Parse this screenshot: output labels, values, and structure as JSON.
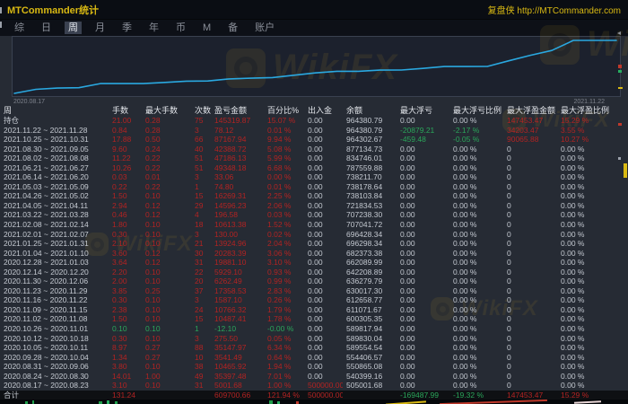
{
  "palette": {
    "red": "#b32322",
    "green": "#2aa65a",
    "neutral": "#c3c8d0",
    "yellow": "#d9b913",
    "chart_line": "#2aa8e0",
    "chart_bg": "#1c212d",
    "table_bg": "#262b34",
    "titlebar_bg": "#0a0d13"
  },
  "titlebar": {
    "title": "MTCommander统计",
    "link": "复盘侠 http://MTCommander.com"
  },
  "tabs": {
    "items": [
      "综",
      "日",
      "周",
      "月",
      "季",
      "年",
      "币",
      "M",
      "备",
      "账户"
    ],
    "active_index": 2
  },
  "watermark": {
    "text": "WikiFX"
  },
  "chart_data": {
    "type": "line",
    "title": "",
    "x_start_label": "2020.08.17",
    "x_end_label": "2021.11.22",
    "series": [
      {
        "name": "余额",
        "values": [
          505001.68,
          540399.16,
          550865.08,
          554406.57,
          589554.54,
          589830.04,
          589817.94,
          600305.35,
          611071.67,
          612658.77,
          630017.3,
          636279.79,
          642208.89,
          662089.99,
          682373.38,
          696298.34,
          696428.34,
          707041.72,
          707238.3,
          721834.53,
          738103.84,
          738178.64,
          738211.7,
          787559.88,
          834746.01,
          877134.73,
          964302.67,
          964380.79,
          964380.79
        ]
      }
    ],
    "ylim": [
      505001.68,
      964380.79
    ],
    "grid": false,
    "legend": false
  },
  "table": {
    "headers": [
      "周",
      "手数",
      "最大手数",
      "次数",
      "盈亏金额",
      "百分比%",
      "出入金",
      "余额",
      "最大浮亏",
      "最大浮亏比例",
      "最大浮盈金额",
      "最大浮盈比例"
    ],
    "rows": [
      {
        "period": "持仓",
        "cells": [
          "21.00",
          "0.28",
          "75",
          "145319.87",
          "15.07 %",
          "0.00",
          "964380.79",
          "0.00",
          "0.00 %",
          "147453.47",
          "15.29 %"
        ],
        "colors": "rrrrrwwwwrr"
      },
      {
        "period": "2021.11.22 ~ 2021.11.28",
        "cells": [
          "0.84",
          "0.28",
          "3",
          "78.12",
          "0.01 %",
          "0.00",
          "964380.79",
          "-20879.21",
          "-2.17 %",
          "34203.47",
          "3.55 %"
        ],
        "colors": "rrrrrwwggrr"
      },
      {
        "period": "2021.10.25 ~ 2021.10.31",
        "cells": [
          "17.88",
          "0.50",
          "66",
          "87167.94",
          "9.94 %",
          "0.00",
          "964302.67",
          "-459.48",
          "-0.05 %",
          "90065.88",
          "10.27 %"
        ],
        "colors": "rrrrrwwggrr"
      },
      {
        "period": "2021.08.30 ~ 2021.09.05",
        "cells": [
          "9.60",
          "0.24",
          "40",
          "42388.72",
          "5.08 %",
          "0.00",
          "877134.73",
          "0.00",
          "0.00 %",
          "0",
          "0.00 %"
        ],
        "colors": "rrrrrwwwwww"
      },
      {
        "period": "2021.08.02 ~ 2021.08.08",
        "cells": [
          "11.22",
          "0.22",
          "51",
          "47186.13",
          "5.99 %",
          "0.00",
          "834746.01",
          "0.00",
          "0.00 %",
          "0",
          "0.00 %"
        ],
        "colors": "rrrrrwwwwww"
      },
      {
        "period": "2021.06.21 ~ 2021.06.27",
        "cells": [
          "10.26",
          "0.22",
          "51",
          "49348.18",
          "6.68 %",
          "0.00",
          "787559.88",
          "0.00",
          "0.00 %",
          "0",
          "0.00 %"
        ],
        "colors": "rrrrrwwwwww"
      },
      {
        "period": "2021.06.14 ~ 2021.06.20",
        "cells": [
          "0.03",
          "0.01",
          "3",
          "33.06",
          "0.00 %",
          "0.00",
          "738211.70",
          "0.00",
          "0.00 %",
          "0",
          "0.00 %"
        ],
        "colors": "rrrrrwwwwww"
      },
      {
        "period": "2021.05.03 ~ 2021.05.09",
        "cells": [
          "0.22",
          "0.22",
          "1",
          "74.80",
          "0.01 %",
          "0.00",
          "738178.64",
          "0.00",
          "0.00 %",
          "0",
          "0.00 %"
        ],
        "colors": "rrrrrwwwwww"
      },
      {
        "period": "2021.04.26 ~ 2021.05.02",
        "cells": [
          "1.50",
          "0.10",
          "15",
          "16269.31",
          "2.25 %",
          "0.00",
          "738103.84",
          "0.00",
          "0.00 %",
          "0",
          "0.00 %"
        ],
        "colors": "rrrrrwwwwww"
      },
      {
        "period": "2021.04.05 ~ 2021.04.11",
        "cells": [
          "2.94",
          "0.12",
          "29",
          "14596.23",
          "2.06 %",
          "0.00",
          "721834.53",
          "0.00",
          "0.00 %",
          "0",
          "0.00 %"
        ],
        "colors": "rrrrrwwwwww"
      },
      {
        "period": "2021.03.22 ~ 2021.03.28",
        "cells": [
          "0.46",
          "0.12",
          "4",
          "196.58",
          "0.03 %",
          "0.00",
          "707238.30",
          "0.00",
          "0.00 %",
          "0",
          "0.00 %"
        ],
        "colors": "rrrrrwwwwww"
      },
      {
        "period": "2021.02.08 ~ 2021.02.14",
        "cells": [
          "1.80",
          "0.10",
          "18",
          "10613.38",
          "1.52 %",
          "0.00",
          "707041.72",
          "0.00",
          "0.00 %",
          "0",
          "0.00 %"
        ],
        "colors": "rrrrrwwwwww"
      },
      {
        "period": "2021.02.01 ~ 2021.02.07",
        "cells": [
          "0.30",
          "0.10",
          "3",
          "130.00",
          "0.02 %",
          "0.00",
          "696428.34",
          "0.00",
          "0.00 %",
          "0",
          "0.00 %"
        ],
        "colors": "rrrrrwwwwww"
      },
      {
        "period": "2021.01.25 ~ 2021.01.31",
        "cells": [
          "2.10",
          "0.10",
          "21",
          "13924.96",
          "2.04 %",
          "0.00",
          "696298.34",
          "0.00",
          "0.00 %",
          "0",
          "0.00 %"
        ],
        "colors": "rrrrrwwwwww"
      },
      {
        "period": "2021.01.04 ~ 2021.01.10",
        "cells": [
          "3.60",
          "0.12",
          "30",
          "20283.39",
          "3.06 %",
          "0.00",
          "682373.38",
          "0.00",
          "0.00 %",
          "0",
          "0.00 %"
        ],
        "colors": "rrrrrwwwwww"
      },
      {
        "period": "2020.12.28 ~ 2021.01.03",
        "cells": [
          "3.64",
          "0.12",
          "31",
          "19881.10",
          "3.10 %",
          "0.00",
          "662089.99",
          "0.00",
          "0.00 %",
          "0",
          "0.00 %"
        ],
        "colors": "rrrrrwwwwww"
      },
      {
        "period": "2020.12.14 ~ 2020.12.20",
        "cells": [
          "2.20",
          "0.10",
          "22",
          "5929.10",
          "0.93 %",
          "0.00",
          "642208.89",
          "0.00",
          "0.00 %",
          "0",
          "0.00 %"
        ],
        "colors": "rrrrrwwwwww"
      },
      {
        "period": "2020.11.30 ~ 2020.12.06",
        "cells": [
          "2.00",
          "0.10",
          "20",
          "6262.49",
          "0.99 %",
          "0.00",
          "636279.79",
          "0.00",
          "0.00 %",
          "0",
          "0.00 %"
        ],
        "colors": "rrrrrwwwwww"
      },
      {
        "period": "2020.11.23 ~ 2020.11.29",
        "cells": [
          "3.85",
          "0.25",
          "37",
          "17358.53",
          "2.83 %",
          "0.00",
          "630017.30",
          "0.00",
          "0.00 %",
          "0",
          "0.00 %"
        ],
        "colors": "rrrrrwwwwww"
      },
      {
        "period": "2020.11.16 ~ 2020.11.22",
        "cells": [
          "0.30",
          "0.10",
          "3",
          "1587.10",
          "0.26 %",
          "0.00",
          "612658.77",
          "0.00",
          "0.00 %",
          "0",
          "0.00 %"
        ],
        "colors": "rrrrrwwwwww"
      },
      {
        "period": "2020.11.09 ~ 2020.11.15",
        "cells": [
          "2.38",
          "0.10",
          "24",
          "10766.32",
          "1.79 %",
          "0.00",
          "611071.67",
          "0.00",
          "0.00 %",
          "0",
          "0.00 %"
        ],
        "colors": "rrrrrwwwwww"
      },
      {
        "period": "2020.11.02 ~ 2020.11.08",
        "cells": [
          "1.50",
          "0.10",
          "15",
          "10487.41",
          "1.78 %",
          "0.00",
          "600305.35",
          "0.00",
          "0.00 %",
          "0",
          "0.00 %"
        ],
        "colors": "rrrrrwwwwww"
      },
      {
        "period": "2020.10.26 ~ 2020.11.01",
        "cells": [
          "0.10",
          "0.10",
          "1",
          "-12.10",
          "-0.00 %",
          "0.00",
          "589817.94",
          "0.00",
          "0.00 %",
          "0",
          "0.00 %"
        ],
        "colors": "gggggwwwwww"
      },
      {
        "period": "2020.10.12 ~ 2020.10.18",
        "cells": [
          "0.30",
          "0.10",
          "3",
          "275.50",
          "0.05 %",
          "0.00",
          "589830.04",
          "0.00",
          "0.00 %",
          "0",
          "0.00 %"
        ],
        "colors": "rrrrrwwwwww"
      },
      {
        "period": "2020.10.05 ~ 2020.10.11",
        "cells": [
          "8.97",
          "0.27",
          "88",
          "35147.97",
          "6.34 %",
          "0.00",
          "589554.54",
          "0.00",
          "0.00 %",
          "0",
          "0.00 %"
        ],
        "colors": "rrrrrwwwwww"
      },
      {
        "period": "2020.09.28 ~ 2020.10.04",
        "cells": [
          "1.34",
          "0.27",
          "10",
          "3541.49",
          "0.64 %",
          "0.00",
          "554406.57",
          "0.00",
          "0.00 %",
          "0",
          "0.00 %"
        ],
        "colors": "rrrrrwwwwww"
      },
      {
        "period": "2020.08.31 ~ 2020.09.06",
        "cells": [
          "3.80",
          "0.10",
          "38",
          "10465.92",
          "1.94 %",
          "0.00",
          "550865.08",
          "0.00",
          "0.00 %",
          "0",
          "0.00 %"
        ],
        "colors": "rrrrrwwwwww"
      },
      {
        "period": "2020.08.24 ~ 2020.08.30",
        "cells": [
          "14.01",
          "1.00",
          "49",
          "35397.48",
          "7.01 %",
          "0.00",
          "540399.16",
          "0.00",
          "0.00 %",
          "0",
          "0.00 %"
        ],
        "colors": "rrrrrwwwwww"
      },
      {
        "period": "2020.08.17 ~ 2020.08.23",
        "cells": [
          "3.10",
          "0.10",
          "31",
          "5001.68",
          "1.00 %",
          "500000.00",
          "505001.68",
          "0.00",
          "0.00 %",
          "0",
          "0.00 %"
        ],
        "colors": "rrrrrrwwwww"
      },
      {
        "period": "合计",
        "cells": [
          "131.24",
          "",
          "",
          "609700.66",
          "121.94 %",
          "500000.00",
          "",
          "-169487.99",
          "-19.32 %",
          "147453.47",
          "15.29 %"
        ],
        "colors": "reerrreggrr",
        "total": true
      }
    ]
  }
}
